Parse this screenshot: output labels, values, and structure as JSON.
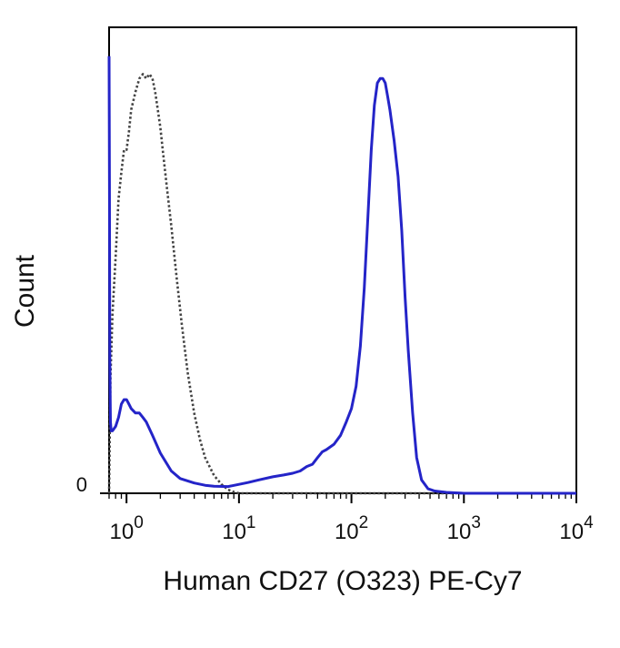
{
  "chart_data": {
    "type": "line",
    "title": "",
    "xlabel": "Human CD27 (O323) PE-Cy7",
    "ylabel": "Count",
    "x_scale": "log",
    "xlim": [
      0.7,
      10000
    ],
    "ylim": [
      0,
      100
    ],
    "x_ticks": [
      {
        "base": "10",
        "exp": "0",
        "value": 1
      },
      {
        "base": "10",
        "exp": "1",
        "value": 10
      },
      {
        "base": "10",
        "exp": "2",
        "value": 100
      },
      {
        "base": "10",
        "exp": "3",
        "value": 1000
      },
      {
        "base": "10",
        "exp": "4",
        "value": 10000
      }
    ],
    "y_ticks": [
      {
        "label": "0",
        "value": 0
      }
    ],
    "grid": false,
    "legend": "none",
    "series": [
      {
        "style": "dotted",
        "color": "#444444",
        "points": [
          [
            0.7,
            0
          ],
          [
            0.72,
            26
          ],
          [
            0.75,
            40
          ],
          [
            0.8,
            53
          ],
          [
            0.85,
            66
          ],
          [
            0.9,
            72
          ],
          [
            0.95,
            77
          ],
          [
            1.0,
            77
          ],
          [
            1.05,
            81
          ],
          [
            1.1,
            86
          ],
          [
            1.2,
            90
          ],
          [
            1.3,
            93
          ],
          [
            1.4,
            94
          ],
          [
            1.5,
            93
          ],
          [
            1.6,
            94
          ],
          [
            1.7,
            93
          ],
          [
            1.8,
            90
          ],
          [
            1.9,
            86
          ],
          [
            2.0,
            82
          ],
          [
            2.1,
            77
          ],
          [
            2.3,
            68
          ],
          [
            2.5,
            60
          ],
          [
            2.8,
            48
          ],
          [
            3.1,
            38
          ],
          [
            3.5,
            27
          ],
          [
            4.0,
            18
          ],
          [
            4.5,
            12
          ],
          [
            5.0,
            8
          ],
          [
            6.0,
            4
          ],
          [
            7.0,
            2
          ],
          [
            8.0,
            0.8
          ],
          [
            9.0,
            0.3
          ],
          [
            10,
            0
          ],
          [
            10000,
            0
          ]
        ]
      },
      {
        "style": "solid",
        "color": "#2424c8",
        "points": [
          [
            0.7,
            98
          ],
          [
            0.705,
            70
          ],
          [
            0.71,
            30
          ],
          [
            0.72,
            16
          ],
          [
            0.73,
            14
          ],
          [
            0.75,
            14
          ],
          [
            0.8,
            15
          ],
          [
            0.85,
            17
          ],
          [
            0.9,
            20
          ],
          [
            0.95,
            21
          ],
          [
            1.0,
            21
          ],
          [
            1.05,
            20
          ],
          [
            1.1,
            19
          ],
          [
            1.2,
            18
          ],
          [
            1.3,
            18
          ],
          [
            1.4,
            17
          ],
          [
            1.5,
            16
          ],
          [
            1.7,
            13
          ],
          [
            2.0,
            9
          ],
          [
            2.5,
            5
          ],
          [
            3.0,
            3.3
          ],
          [
            4.0,
            2.3
          ],
          [
            5.0,
            1.8
          ],
          [
            6.0,
            1.6
          ],
          [
            8.0,
            1.5
          ],
          [
            10,
            2
          ],
          [
            12,
            2.4
          ],
          [
            15,
            3
          ],
          [
            20,
            3.7
          ],
          [
            25,
            4.1
          ],
          [
            30,
            4.5
          ],
          [
            35,
            5
          ],
          [
            40,
            6
          ],
          [
            45,
            6.5
          ],
          [
            50,
            8
          ],
          [
            55,
            9.3
          ],
          [
            60,
            9.8
          ],
          [
            70,
            11
          ],
          [
            80,
            13
          ],
          [
            90,
            16
          ],
          [
            100,
            19
          ],
          [
            110,
            24
          ],
          [
            120,
            33
          ],
          [
            130,
            46
          ],
          [
            140,
            62
          ],
          [
            150,
            77
          ],
          [
            160,
            87
          ],
          [
            170,
            92
          ],
          [
            180,
            93
          ],
          [
            190,
            93
          ],
          [
            200,
            92
          ],
          [
            210,
            89
          ],
          [
            220,
            86
          ],
          [
            240,
            79
          ],
          [
            260,
            71
          ],
          [
            280,
            59
          ],
          [
            300,
            44
          ],
          [
            320,
            32
          ],
          [
            350,
            18
          ],
          [
            380,
            8
          ],
          [
            420,
            3
          ],
          [
            480,
            1
          ],
          [
            550,
            0.5
          ],
          [
            700,
            0.2
          ],
          [
            1000,
            0
          ],
          [
            10000,
            0
          ]
        ]
      }
    ]
  }
}
